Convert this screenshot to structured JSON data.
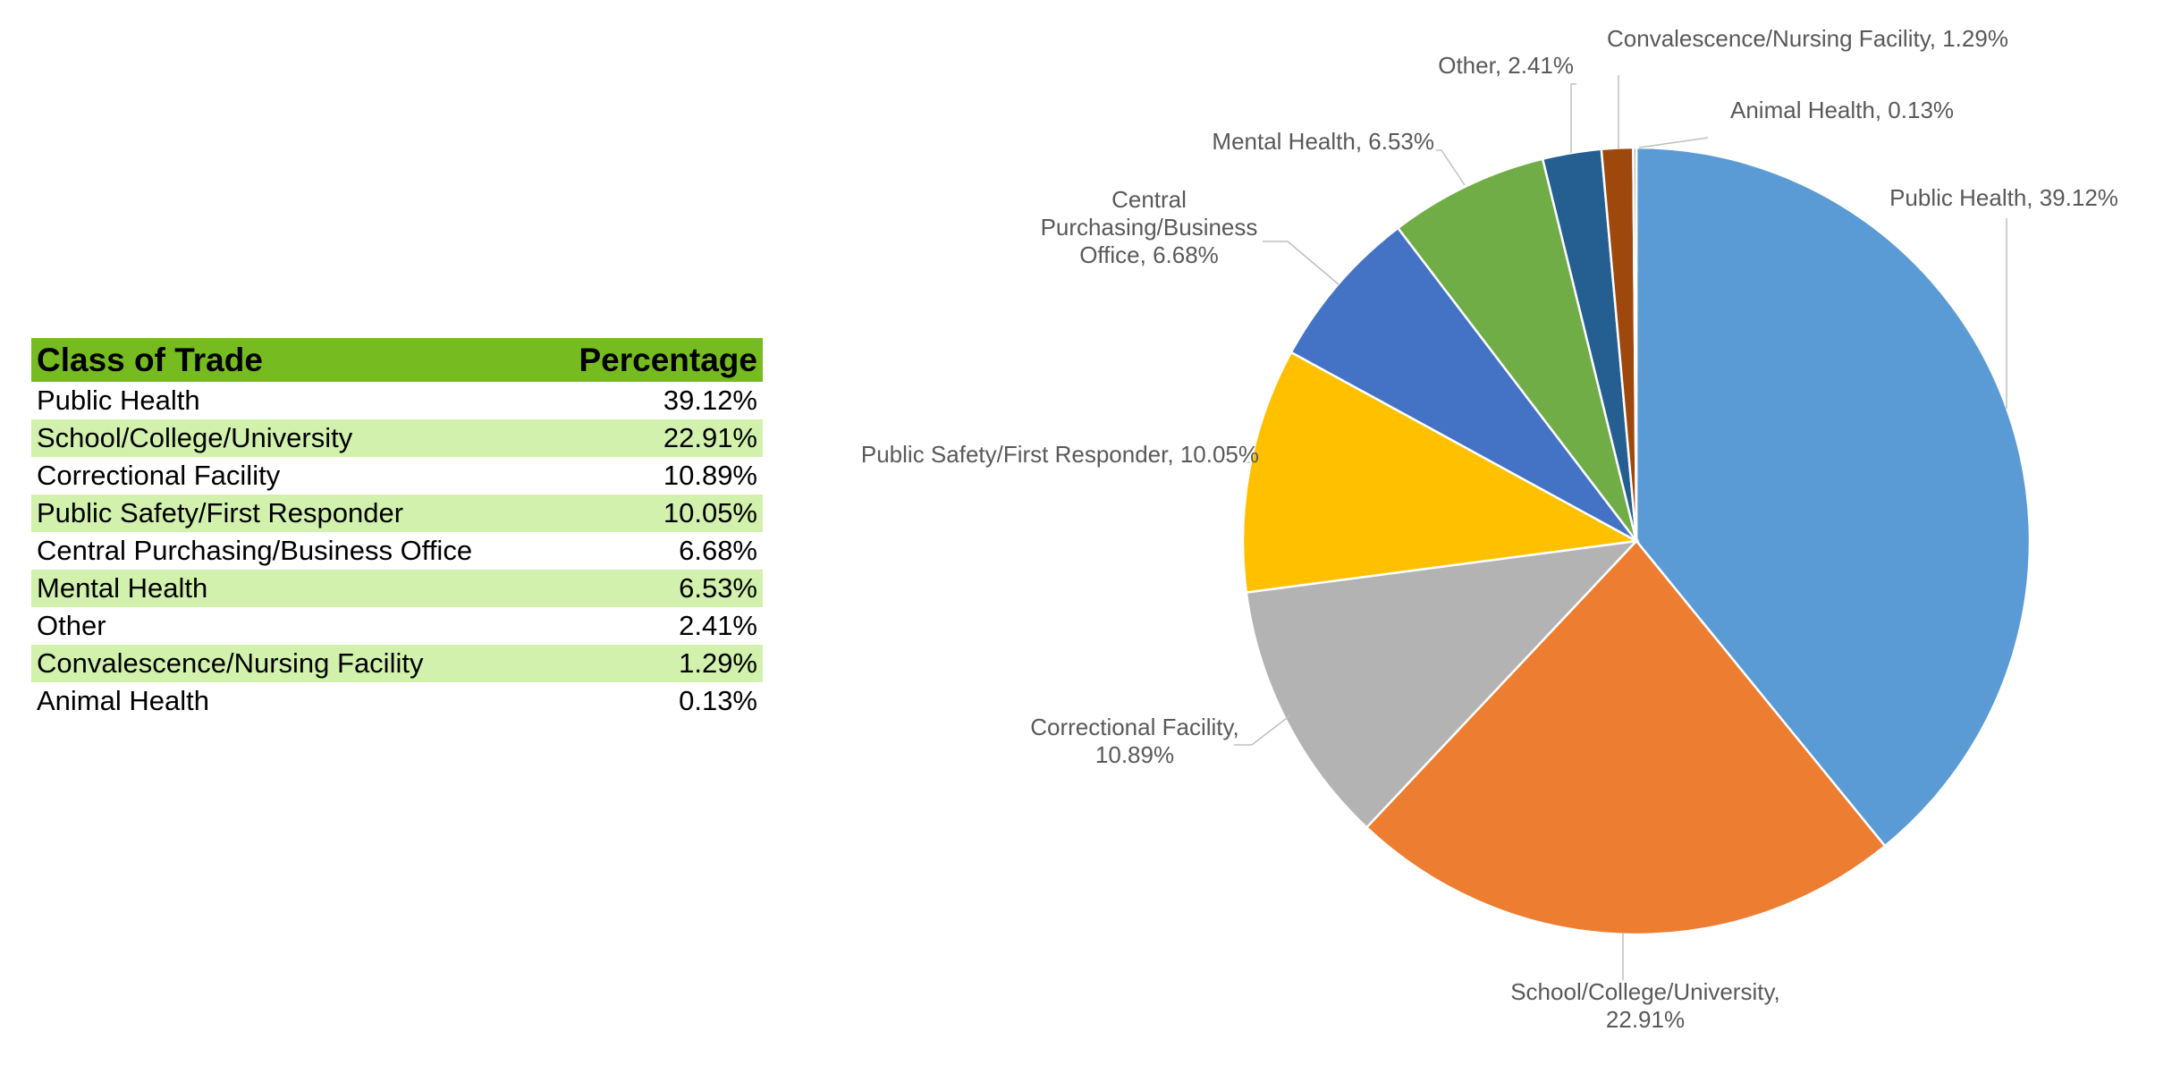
{
  "table": {
    "header_class": "Class of Trade",
    "header_pct": "Percentage",
    "rows": [
      {
        "label": "Public Health",
        "pct": "39.12%"
      },
      {
        "label": "School/College/University",
        "pct": "22.91%"
      },
      {
        "label": "Correctional Facility",
        "pct": "10.89%"
      },
      {
        "label": "Public Safety/First Responder",
        "pct": "10.05%"
      },
      {
        "label": "Central Purchasing/Business Office",
        "pct": "6.68%"
      },
      {
        "label": "Mental Health",
        "pct": "6.53%"
      },
      {
        "label": "Other",
        "pct": "2.41%"
      },
      {
        "label": "Convalescence/Nursing Facility",
        "pct": "1.29%"
      },
      {
        "label": "Animal Health",
        "pct": "0.13%"
      }
    ]
  },
  "chart_data": {
    "type": "pie",
    "title": "",
    "slices": [
      {
        "name": "Public Health",
        "value": 39.12,
        "color": "#5b9bd5",
        "label_lines": [
          "Public Health, 39.12%"
        ]
      },
      {
        "name": "School/College/University",
        "value": 22.91,
        "color": "#ed7d31",
        "label_lines": [
          "School/College/University,",
          "22.91%"
        ]
      },
      {
        "name": "Correctional Facility",
        "value": 10.89,
        "color": "#b3b3b3",
        "label_lines": [
          "Correctional Facility,",
          "10.89%"
        ]
      },
      {
        "name": "Public Safety/First Responder",
        "value": 10.05,
        "color": "#ffc000",
        "label_lines": [
          "Public Safety/First Responder, 10.05%"
        ]
      },
      {
        "name": "Central Purchasing/Business Office",
        "value": 6.68,
        "color": "#4472c4",
        "label_lines": [
          "Central",
          "Purchasing/Business",
          "Office, 6.68%"
        ]
      },
      {
        "name": "Mental Health",
        "value": 6.53,
        "color": "#70ad47",
        "label_lines": [
          "Mental Health, 6.53%"
        ]
      },
      {
        "name": "Other",
        "value": 2.41,
        "color": "#255e91",
        "label_lines": [
          "Other, 2.41%"
        ]
      },
      {
        "name": "Convalescence/Nursing Facility",
        "value": 1.29,
        "color": "#9e480e",
        "label_lines": [
          "Convalescence/Nursing Facility, 1.29%"
        ]
      },
      {
        "name": "Animal Health",
        "value": 0.13,
        "color": "#a5a5a5",
        "label_lines": [
          "Animal Health, 0.13%"
        ]
      }
    ]
  }
}
